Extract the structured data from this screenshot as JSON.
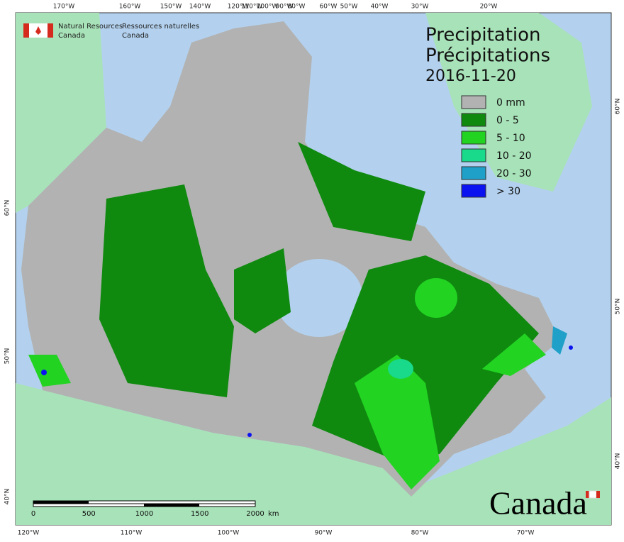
{
  "logo": {
    "en": [
      "Natural Resources",
      "Canada"
    ],
    "fr": [
      "Ressources naturelles",
      "Canada"
    ]
  },
  "title": [
    "Precipitation",
    "Précipitations"
  ],
  "date": "2016-11-20",
  "legend": [
    {
      "label": "0 mm",
      "color": "#b2b2b2"
    },
    {
      "label": "0 - 5",
      "color": "#0f8a0f"
    },
    {
      "label": "5 - 10",
      "color": "#22d322"
    },
    {
      "label": "10 - 20",
      "color": "#19d98a"
    },
    {
      "label": "20 - 30",
      "color": "#1fa0c8"
    },
    {
      "label": "> 30",
      "color": "#0a12f0"
    }
  ],
  "graticule": {
    "top": [
      "170°W",
      "160°W",
      "150°W",
      "140°W",
      "120°W",
      "110°W",
      "100°W",
      "90°W",
      "80°W",
      "60°W",
      "50°W",
      "40°W",
      "30°W",
      "20°W"
    ],
    "bottom": [
      "120°W",
      "110°W",
      "100°W",
      "90°W",
      "80°W",
      "70°W"
    ],
    "left": [
      "60°N",
      "50°N",
      "40°N"
    ],
    "right": [
      "60°N",
      "50°N",
      "40°N"
    ]
  },
  "scale_bar": {
    "labels": [
      "0",
      "500",
      "1000",
      "1500",
      "2000"
    ],
    "unit": "km"
  },
  "wordmark": "Canada"
}
